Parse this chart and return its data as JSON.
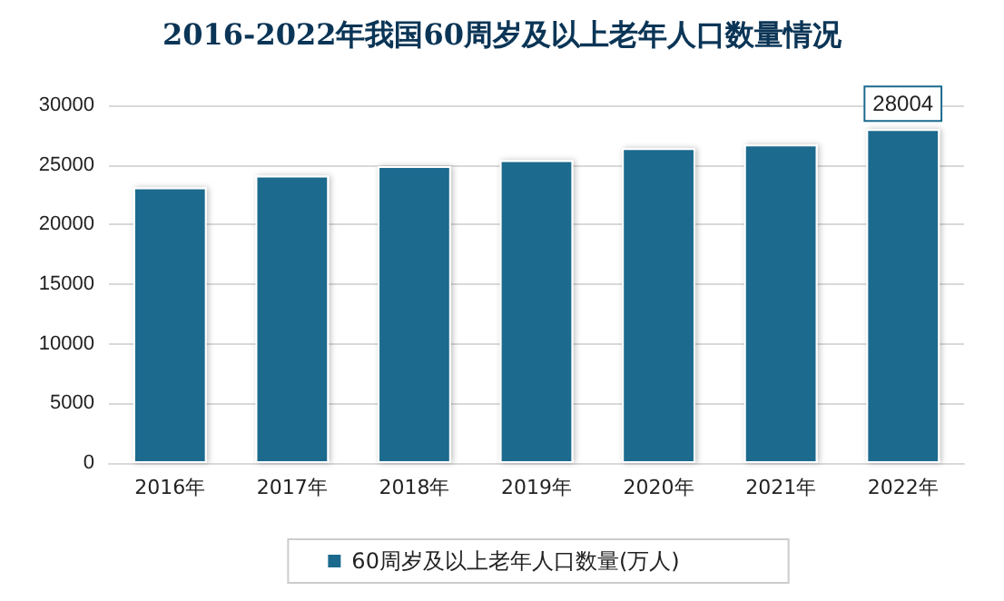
{
  "chart_data": {
    "type": "bar",
    "title": "2016-2022年我国60周岁及以上老年人口数量情况",
    "categories": [
      "2016年",
      "2017年",
      "2018年",
      "2019年",
      "2020年",
      "2021年",
      "2022年"
    ],
    "series": [
      {
        "name": "60周岁及以上老年人口数量(万人)",
        "color": "#1b6a8e",
        "values": [
          23100,
          24100,
          24900,
          25400,
          26400,
          26700,
          28004
        ],
        "value_labels": [
          null,
          null,
          null,
          null,
          null,
          null,
          "28004"
        ]
      }
    ],
    "ylim": [
      0,
      30000
    ],
    "yticks": [
      0,
      5000,
      10000,
      15000,
      20000,
      25000,
      30000
    ],
    "grid": "y",
    "legend": "bottom"
  }
}
